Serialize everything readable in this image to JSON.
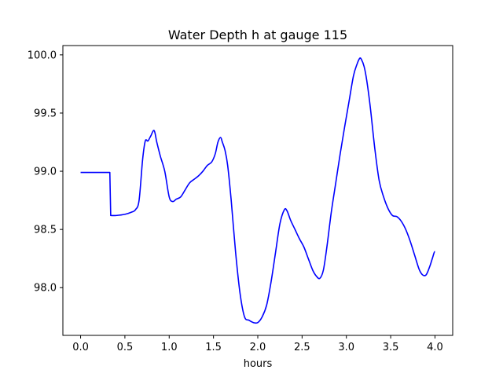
{
  "chart_data": {
    "type": "line",
    "title": "Water Depth h at gauge 115",
    "xlabel": "hours",
    "ylabel": "",
    "xlim": [
      -0.2,
      4.2
    ],
    "ylim": [
      97.59,
      100.08
    ],
    "xticks": [
      0.0,
      0.5,
      1.0,
      1.5,
      2.0,
      2.5,
      3.0,
      3.5,
      4.0
    ],
    "xtick_labels": [
      "0.0",
      "0.5",
      "1.0",
      "1.5",
      "2.0",
      "2.5",
      "3.0",
      "3.5",
      "4.0"
    ],
    "yticks": [
      98.0,
      98.5,
      99.0,
      99.5,
      100.0
    ],
    "ytick_labels": [
      "98.0",
      "98.5",
      "99.0",
      "99.5",
      "100.0"
    ],
    "grid": false,
    "series": [
      {
        "color": "#0000ff",
        "x": [
          0.0,
          0.1,
          0.2,
          0.3,
          0.33,
          0.335,
          0.34,
          0.4,
          0.5,
          0.58,
          0.62,
          0.66,
          0.7,
          0.73,
          0.76,
          0.79,
          0.83,
          0.86,
          0.9,
          0.95,
          1.0,
          1.04,
          1.08,
          1.13,
          1.18,
          1.23,
          1.28,
          1.33,
          1.38,
          1.43,
          1.48,
          1.52,
          1.55,
          1.58,
          1.6,
          1.63,
          1.66,
          1.7,
          1.75,
          1.8,
          1.85,
          1.9,
          1.95,
          2.0,
          2.05,
          2.1,
          2.15,
          2.2,
          2.25,
          2.3,
          2.33,
          2.37,
          2.42,
          2.47,
          2.52,
          2.57,
          2.62,
          2.66,
          2.7,
          2.74,
          2.78,
          2.83,
          2.88,
          2.93,
          2.98,
          3.03,
          3.08,
          3.12,
          3.15,
          3.17,
          3.2,
          3.23,
          3.27,
          3.32,
          3.37,
          3.42,
          3.47,
          3.52,
          3.57,
          3.62,
          3.67,
          3.72,
          3.77,
          3.82,
          3.86,
          3.9,
          3.94,
          3.97,
          4.0
        ],
        "y": [
          98.99,
          98.99,
          98.99,
          98.99,
          98.99,
          98.8,
          98.62,
          98.62,
          98.63,
          98.65,
          98.67,
          98.75,
          99.1,
          99.26,
          99.26,
          99.3,
          99.35,
          99.25,
          99.13,
          99.0,
          98.78,
          98.74,
          98.76,
          98.78,
          98.84,
          98.9,
          98.93,
          98.96,
          99.0,
          99.05,
          99.08,
          99.15,
          99.25,
          99.29,
          99.25,
          99.18,
          99.05,
          98.75,
          98.3,
          97.95,
          97.75,
          97.72,
          97.7,
          97.7,
          97.75,
          97.85,
          98.05,
          98.3,
          98.55,
          98.67,
          98.66,
          98.58,
          98.5,
          98.42,
          98.35,
          98.25,
          98.15,
          98.1,
          98.08,
          98.15,
          98.35,
          98.65,
          98.9,
          99.15,
          99.38,
          99.6,
          99.82,
          99.92,
          99.97,
          99.96,
          99.9,
          99.78,
          99.55,
          99.2,
          98.92,
          98.78,
          98.68,
          98.62,
          98.61,
          98.57,
          98.5,
          98.4,
          98.28,
          98.16,
          98.11,
          98.11,
          98.18,
          98.25,
          98.31
        ]
      }
    ]
  }
}
